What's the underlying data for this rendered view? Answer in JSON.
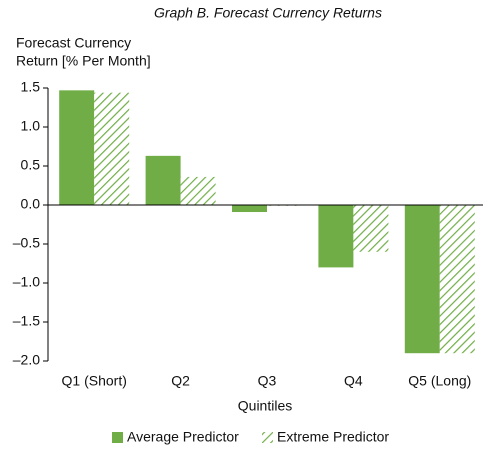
{
  "chart_data": {
    "type": "bar",
    "title": "Graph B. Forecast Currency Returns",
    "y_label": [
      "Forecast Currency",
      "Return [% Per Month]"
    ],
    "x_label": "Quintiles",
    "categories": [
      "Q1 (Short)",
      "Q2",
      "Q3",
      "Q4",
      "Q5 (Long)"
    ],
    "series": [
      {
        "name": "Average Predictor",
        "color": "#70ad47",
        "pattern": "solid",
        "values": [
          1.47,
          0.63,
          -0.09,
          -0.8,
          -1.9
        ]
      },
      {
        "name": "Extreme Predictor",
        "color": "#70ad47",
        "pattern": "hatch",
        "values": [
          1.44,
          0.36,
          -0.01,
          -0.6,
          -1.9
        ]
      }
    ],
    "ylim": [
      -2.0,
      1.5
    ],
    "yticks": [
      {
        "value": -2.0,
        "label": "–2.0"
      },
      {
        "value": -1.5,
        "label": "–1.5"
      },
      {
        "value": -1.0,
        "label": "–1.0"
      },
      {
        "value": -0.5,
        "label": "–0.5"
      },
      {
        "value": 0,
        "label": "0.0"
      },
      0.5,
      {
        "value": 1,
        "label": "1.0"
      },
      1.5
    ],
    "legend": "bottom"
  }
}
